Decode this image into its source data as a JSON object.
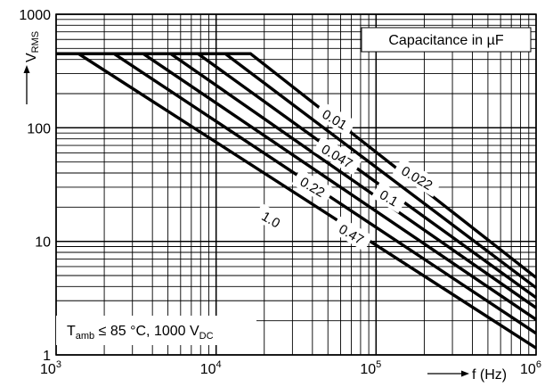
{
  "chart_data": {
    "type": "line",
    "x_scale": "log",
    "y_scale": "log",
    "xlim": [
      1000,
      1000000
    ],
    "ylim": [
      1,
      1000
    ],
    "grid": true,
    "x_ticks": [
      {
        "value": 1000,
        "base": "10",
        "exp": "3"
      },
      {
        "value": 10000,
        "base": "10",
        "exp": "4"
      },
      {
        "value": 100000,
        "base": "10",
        "exp": "5"
      },
      {
        "value": 1000000,
        "base": "10",
        "exp": "6"
      }
    ],
    "y_ticks": [
      {
        "value": 1,
        "label": "1"
      },
      {
        "value": 10,
        "label": "10"
      },
      {
        "value": 100,
        "label": "100"
      },
      {
        "value": 1000,
        "label": "1000"
      }
    ],
    "xlabel": "f (Hz)",
    "ylabel": {
      "main": "V",
      "sub": "RMS"
    },
    "legend_title": "Capacitance in µF",
    "condition": {
      "t": "T",
      "t_sub": "amb",
      "mid": " ≤ 85 °C, 1000 V",
      "v_sub": "DC"
    },
    "series": [
      {
        "name": "0.01",
        "points": [
          [
            1000,
            450
          ],
          [
            16400,
            450
          ],
          [
            1000000,
            4.8
          ]
        ]
      },
      {
        "name": "0.022",
        "points": [
          [
            1000,
            450
          ],
          [
            11400,
            450
          ],
          [
            1000000,
            3.9
          ]
        ]
      },
      {
        "name": "0.047",
        "points": [
          [
            1000,
            450
          ],
          [
            7700,
            450
          ],
          [
            1000000,
            3.2
          ]
        ]
      },
      {
        "name": "0.1",
        "points": [
          [
            1000,
            450
          ],
          [
            5200,
            450
          ],
          [
            1000000,
            2.6
          ]
        ]
      },
      {
        "name": "0.22",
        "points": [
          [
            1000,
            450
          ],
          [
            3500,
            450
          ],
          [
            1000000,
            2.05
          ]
        ]
      },
      {
        "name": "0.47",
        "points": [
          [
            1000,
            450
          ],
          [
            2300,
            450
          ],
          [
            1000000,
            1.55
          ]
        ]
      },
      {
        "name": "1.0",
        "points": [
          [
            1000,
            450
          ],
          [
            1380,
            450
          ],
          [
            1000000,
            1.15
          ]
        ]
      }
    ],
    "curve_labels": [
      {
        "text": "0.01",
        "x": 55000,
        "y": 118
      },
      {
        "text": "0.047",
        "x": 57000,
        "y": 56
      },
      {
        "text": "0.022",
        "x": 180000,
        "y": 36
      },
      {
        "text": "0.22",
        "x": 40000,
        "y": 30
      },
      {
        "text": "0.1",
        "x": 120000,
        "y": 24
      },
      {
        "text": "1.0",
        "x": 22000,
        "y": 15.5
      },
      {
        "text": "0.47",
        "x": 70000,
        "y": 11.5
      }
    ]
  }
}
